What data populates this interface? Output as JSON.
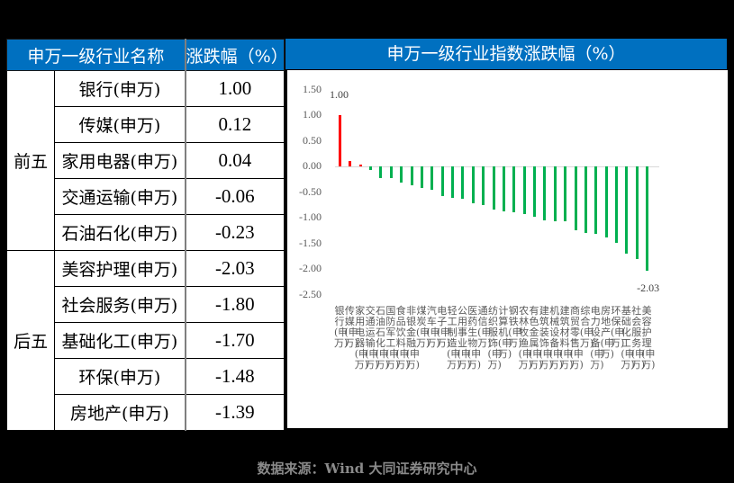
{
  "table": {
    "headers": [
      "申万一级行业名称",
      "涨跌幅（%）"
    ],
    "groups": [
      {
        "label": "前五",
        "rows": [
          {
            "name": "银行(申万)",
            "value": "1.00",
            "dir": "up"
          },
          {
            "name": "传媒(申万)",
            "value": "0.12",
            "dir": "up"
          },
          {
            "name": "家用电器(申万)",
            "value": "0.04",
            "dir": "up"
          },
          {
            "name": "交通运输(申万)",
            "value": "-0.06",
            "dir": "down"
          },
          {
            "name": "石油石化(申万)",
            "value": "-0.23",
            "dir": "down"
          }
        ]
      },
      {
        "label": "后五",
        "rows": [
          {
            "name": "美容护理(申万)",
            "value": "-2.03",
            "dir": "down"
          },
          {
            "name": "社会服务(申万)",
            "value": "-1.80",
            "dir": "down"
          },
          {
            "name": "基础化工(申万)",
            "value": "-1.70",
            "dir": "down"
          },
          {
            "name": "环保(申万)",
            "value": "-1.48",
            "dir": "down"
          },
          {
            "name": "房地产(申万)",
            "value": "-1.39",
            "dir": "down"
          }
        ]
      }
    ]
  },
  "colors": {
    "header_bg": "#0070C0",
    "up": "#FF0000",
    "down": "#00B050"
  },
  "footer": "数据来源：Wind 大同证券研究中心",
  "chart_data": {
    "type": "bar",
    "title": "申万一级行业指数涨跌幅（%）",
    "xlabel": "",
    "ylabel": "",
    "ylim": [
      -2.5,
      1.5
    ],
    "yticks": [
      "1.50",
      "1.00",
      "0.50",
      "0.00",
      "-0.50",
      "-1.00",
      "-1.50",
      "-2.00",
      "-2.50"
    ],
    "grid": false,
    "legend": null,
    "categories": [
      "银行(申万)",
      "传媒(申万)",
      "家用电器(申万)",
      "交通运输(申万)",
      "石油石化(申万)",
      "国防军工(申万)",
      "食品饮料(申万)",
      "非银金融(申万)",
      "煤炭(申万)",
      "汽车(申万)",
      "电子(申万)",
      "轻工制造(申万)",
      "公用事业(申万)",
      "医药生物(申万)",
      "通信(申万)",
      "纺织服饰(申万)",
      "计算机(申万)",
      "钢铁(申万)",
      "农林牧渔(申万)",
      "有色金属(申万)",
      "建筑装饰(申万)",
      "机械设备(申万)",
      "建筑材料(申万)",
      "商贸零售(申万)",
      "综合(申万)",
      "电力设备(申万)",
      "房地产(申万)",
      "环保(申万)",
      "基础化工(申万)",
      "社会服务(申万)",
      "美容护理(申万)"
    ],
    "values": [
      1.0,
      0.12,
      0.04,
      -0.06,
      -0.23,
      -0.23,
      -0.31,
      -0.36,
      -0.41,
      -0.45,
      -0.57,
      -0.61,
      -0.63,
      -0.71,
      -0.75,
      -0.84,
      -0.87,
      -0.89,
      -0.93,
      -0.98,
      -1.05,
      -1.07,
      -1.07,
      -1.24,
      -1.3,
      -1.31,
      -1.39,
      -1.48,
      -1.7,
      -1.8,
      -2.03
    ],
    "data_labels": [
      {
        "index": 0,
        "text": "1.00"
      },
      {
        "index": 30,
        "text": "-2.03"
      }
    ]
  }
}
